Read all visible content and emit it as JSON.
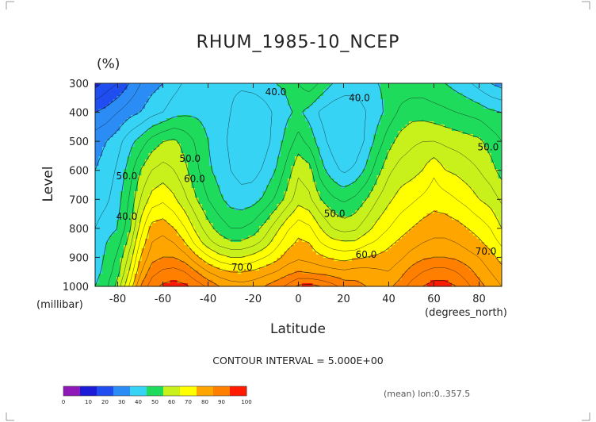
{
  "chart_data": {
    "type": "heatmap",
    "subtype": "filled-contour",
    "title": "RHUM_1985-10_NCEP",
    "unit": "(%)",
    "xlabel": "Latitude",
    "x_units": "(degrees_north)",
    "ylabel": "Level",
    "y_units": "(millibar)",
    "xlim": [
      -90,
      90
    ],
    "ylim": [
      1000,
      300
    ],
    "x_ticks": [
      -80,
      -60,
      -40,
      -20,
      0,
      20,
      40,
      60,
      80
    ],
    "x_tick_labels": [
      "-80",
      "-60",
      "-40",
      "-20",
      "0",
      "20",
      "40",
      "60",
      "80"
    ],
    "y_ticks": [
      300,
      400,
      500,
      600,
      700,
      800,
      900,
      1000
    ],
    "y_tick_labels": [
      "300",
      "400",
      "500",
      "600",
      "700",
      "800",
      "900",
      "1000"
    ],
    "contour_interval_text": "CONTOUR INTERVAL = 5.000E+00",
    "averaging_note": "(mean) lon:0..357.5",
    "colorbar": {
      "boundaries": [
        0,
        10,
        20,
        30,
        40,
        50,
        60,
        70,
        80,
        90,
        100
      ],
      "labels": [
        "0",
        "10",
        "20",
        "30",
        "40",
        "50",
        "60",
        "70",
        "80",
        "90",
        "100"
      ],
      "colors": [
        "#8e18b8",
        "#1c1cd6",
        "#1f4df0",
        "#2a8cf4",
        "#36d3f5",
        "#1fdb5c",
        "#c8f01a",
        "#ffff00",
        "#ffa500",
        "#ff7f00",
        "#ff1a00"
      ]
    },
    "contour_labels": [
      {
        "text": "40.0",
        "lat": -10,
        "level": 330
      },
      {
        "text": "40.0",
        "lat": 27,
        "level": 350
      },
      {
        "text": "50.0",
        "lat": -76,
        "level": 620
      },
      {
        "text": "50.0",
        "lat": -48,
        "level": 560
      },
      {
        "text": "60.0",
        "lat": -46,
        "level": 630
      },
      {
        "text": "40.0",
        "lat": -76,
        "level": 760
      },
      {
        "text": "50.0",
        "lat": 16,
        "level": 750
      },
      {
        "text": "60.0",
        "lat": 30,
        "level": 890
      },
      {
        "text": "70.0",
        "lat": -25,
        "level": 935
      },
      {
        "text": "70.0",
        "lat": 83,
        "level": 880
      },
      {
        "text": "50.0",
        "lat": 84,
        "level": 520
      }
    ],
    "lat": [
      -90,
      -85,
      -80,
      -75,
      -70,
      -65,
      -60,
      -55,
      -50,
      -45,
      -40,
      -35,
      -30,
      -25,
      -20,
      -15,
      -10,
      -5,
      0,
      5,
      10,
      15,
      20,
      25,
      30,
      35,
      40,
      45,
      50,
      55,
      60,
      65,
      70,
      75,
      80,
      85,
      90
    ],
    "levels": [
      300,
      400,
      500,
      600,
      700,
      800,
      850,
      900,
      950,
      1000
    ],
    "values": [
      [
        8,
        12,
        15,
        20,
        25,
        28,
        30,
        33,
        36,
        38,
        38,
        37,
        36,
        36,
        37,
        38,
        40,
        41,
        45,
        48,
        44,
        40,
        38,
        37,
        38,
        40,
        41,
        42,
        42,
        42,
        41,
        40,
        38,
        36,
        33,
        30,
        28
      ],
      [
        20,
        22,
        25,
        28,
        30,
        33,
        35,
        38,
        39,
        39,
        38,
        37,
        35,
        32,
        31,
        33,
        36,
        39,
        41,
        38,
        34,
        32,
        31,
        32,
        35,
        38,
        42,
        46,
        48,
        48,
        47,
        46,
        45,
        44,
        43,
        41,
        40
      ],
      [
        28,
        30,
        33,
        38,
        42,
        47,
        50,
        51,
        48,
        44,
        40,
        37,
        34,
        31,
        30,
        33,
        37,
        42,
        47,
        43,
        37,
        33,
        30,
        31,
        36,
        42,
        48,
        52,
        54,
        55,
        55,
        54,
        53,
        52,
        51,
        48,
        45
      ],
      [
        30,
        32,
        36,
        42,
        50,
        55,
        57,
        55,
        51,
        46,
        41,
        38,
        35,
        33,
        33,
        36,
        40,
        47,
        54,
        52,
        42,
        37,
        34,
        36,
        41,
        48,
        54,
        57,
        58,
        60,
        64,
        60,
        59,
        57,
        55,
        52,
        48
      ],
      [
        32,
        34,
        38,
        45,
        55,
        62,
        64,
        61,
        56,
        50,
        45,
        41,
        38,
        37,
        38,
        41,
        46,
        52,
        58,
        56,
        50,
        46,
        44,
        46,
        50,
        55,
        59,
        62,
        64,
        66,
        68,
        67,
        65,
        63,
        60,
        58,
        54
      ],
      [
        35,
        38,
        40,
        48,
        62,
        72,
        73,
        70,
        65,
        58,
        52,
        48,
        45,
        45,
        47,
        52,
        58,
        64,
        68,
        66,
        60,
        55,
        53,
        54,
        58,
        62,
        65,
        68,
        70,
        72,
        73,
        73,
        72,
        70,
        68,
        65,
        60
      ],
      [
        36,
        40,
        43,
        52,
        66,
        75,
        77,
        75,
        70,
        63,
        57,
        53,
        51,
        51,
        53,
        57,
        63,
        68,
        71,
        70,
        65,
        62,
        61,
        61,
        64,
        66,
        69,
        71,
        73,
        75,
        76,
        76,
        75,
        73,
        71,
        68,
        64
      ],
      [
        37,
        41,
        46,
        56,
        70,
        78,
        80,
        80,
        77,
        71,
        66,
        62,
        60,
        60,
        62,
        65,
        68,
        72,
        74,
        73,
        71,
        69,
        68,
        69,
        70,
        71,
        72,
        74,
        77,
        79,
        80,
        80,
        79,
        77,
        75,
        72,
        68
      ],
      [
        38,
        42,
        48,
        60,
        74,
        83,
        86,
        87,
        85,
        80,
        75,
        72,
        70,
        70,
        71,
        73,
        75,
        78,
        80,
        79,
        78,
        77,
        76,
        77,
        77,
        76,
        75,
        78,
        82,
        85,
        87,
        87,
        85,
        82,
        78,
        75,
        72
      ],
      [
        40,
        44,
        52,
        65,
        80,
        88,
        91,
        92,
        91,
        88,
        84,
        80,
        78,
        77,
        78,
        80,
        83,
        86,
        91,
        92,
        90,
        87,
        83,
        82,
        80,
        79,
        79,
        82,
        87,
        90,
        92,
        92,
        90,
        86,
        82,
        78,
        75
      ]
    ]
  }
}
